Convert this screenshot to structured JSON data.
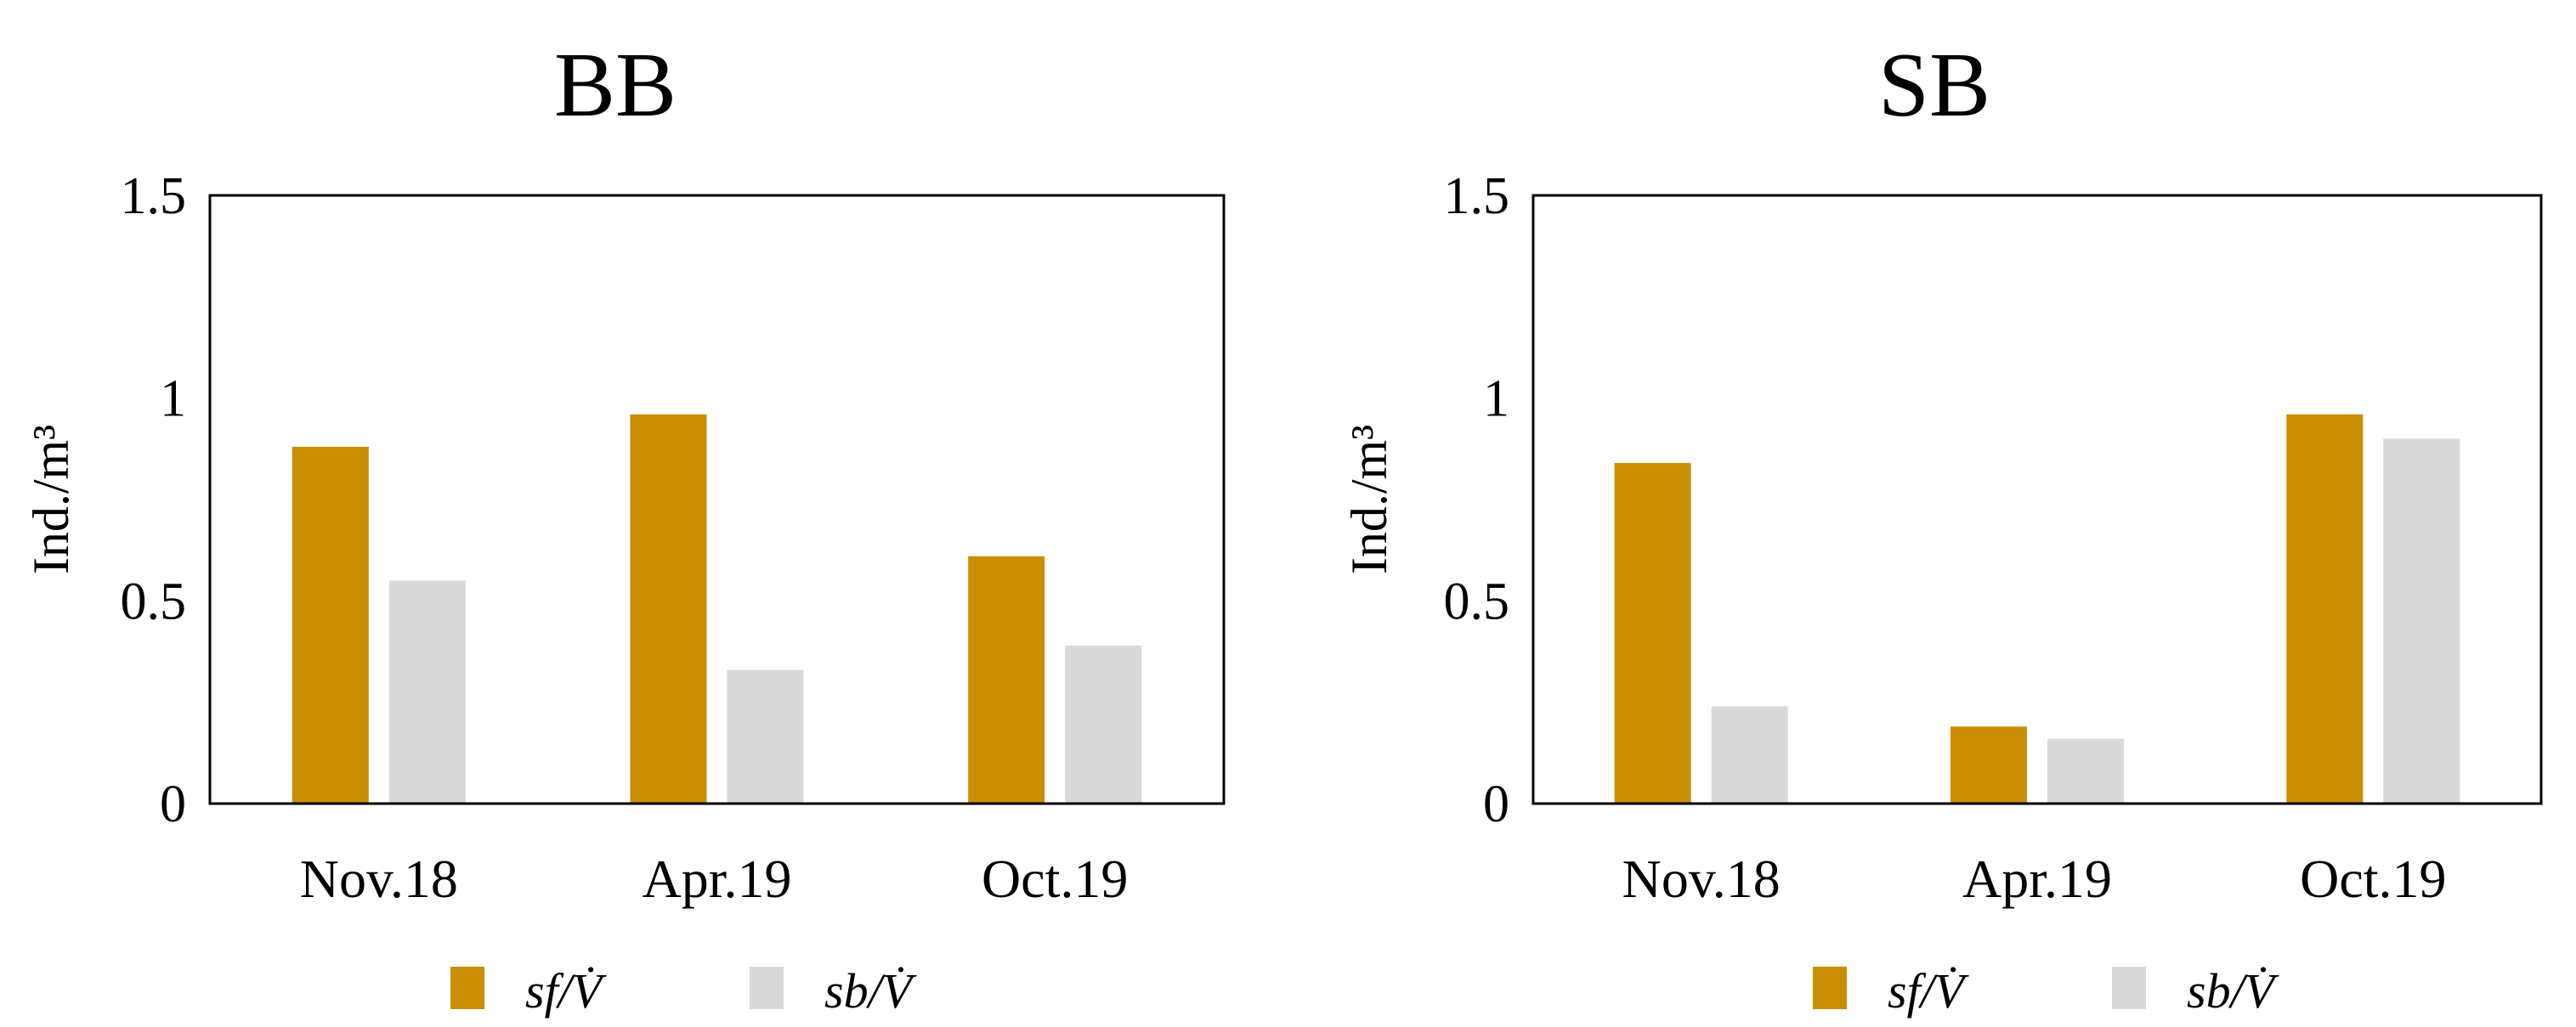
{
  "page": {
    "background": "#ffffff",
    "text_color": "#000000",
    "axis_color": "#000000"
  },
  "chart_data": [
    {
      "type": "bar",
      "title": "BB",
      "ylabel": "Ind./m³",
      "xlabel": "",
      "categories": [
        "Nov.18",
        "Apr.19",
        "Oct.19"
      ],
      "series": [
        {
          "name": "sf/V̇",
          "color": "#C98E04",
          "values": [
            0.88,
            0.96,
            0.61
          ]
        },
        {
          "name": "sb/V̇",
          "color": "#D9D9D9",
          "values": [
            0.55,
            0.33,
            0.39
          ]
        }
      ],
      "ylim": [
        0,
        1.5
      ],
      "yticks": [
        0,
        0.5,
        1,
        1.5
      ],
      "ytick_labels": [
        "0",
        "0.5",
        "1",
        "1.5"
      ],
      "grid": false,
      "legend_position": "bottom"
    },
    {
      "type": "bar",
      "title": "SB",
      "ylabel": "Ind./m³",
      "xlabel": "",
      "categories": [
        "Nov.18",
        "Apr.19",
        "Oct.19"
      ],
      "series": [
        {
          "name": "sf/V̇",
          "color": "#C98E04",
          "values": [
            0.84,
            0.19,
            0.96
          ]
        },
        {
          "name": "sb/V̇",
          "color": "#D9D9D9",
          "values": [
            0.24,
            0.16,
            0.9
          ]
        }
      ],
      "ylim": [
        0,
        1.5
      ],
      "yticks": [
        0,
        0.5,
        1,
        1.5
      ],
      "ytick_labels": [
        "0",
        "0.5",
        "1",
        "1.5"
      ],
      "grid": false,
      "legend_position": "bottom"
    }
  ]
}
